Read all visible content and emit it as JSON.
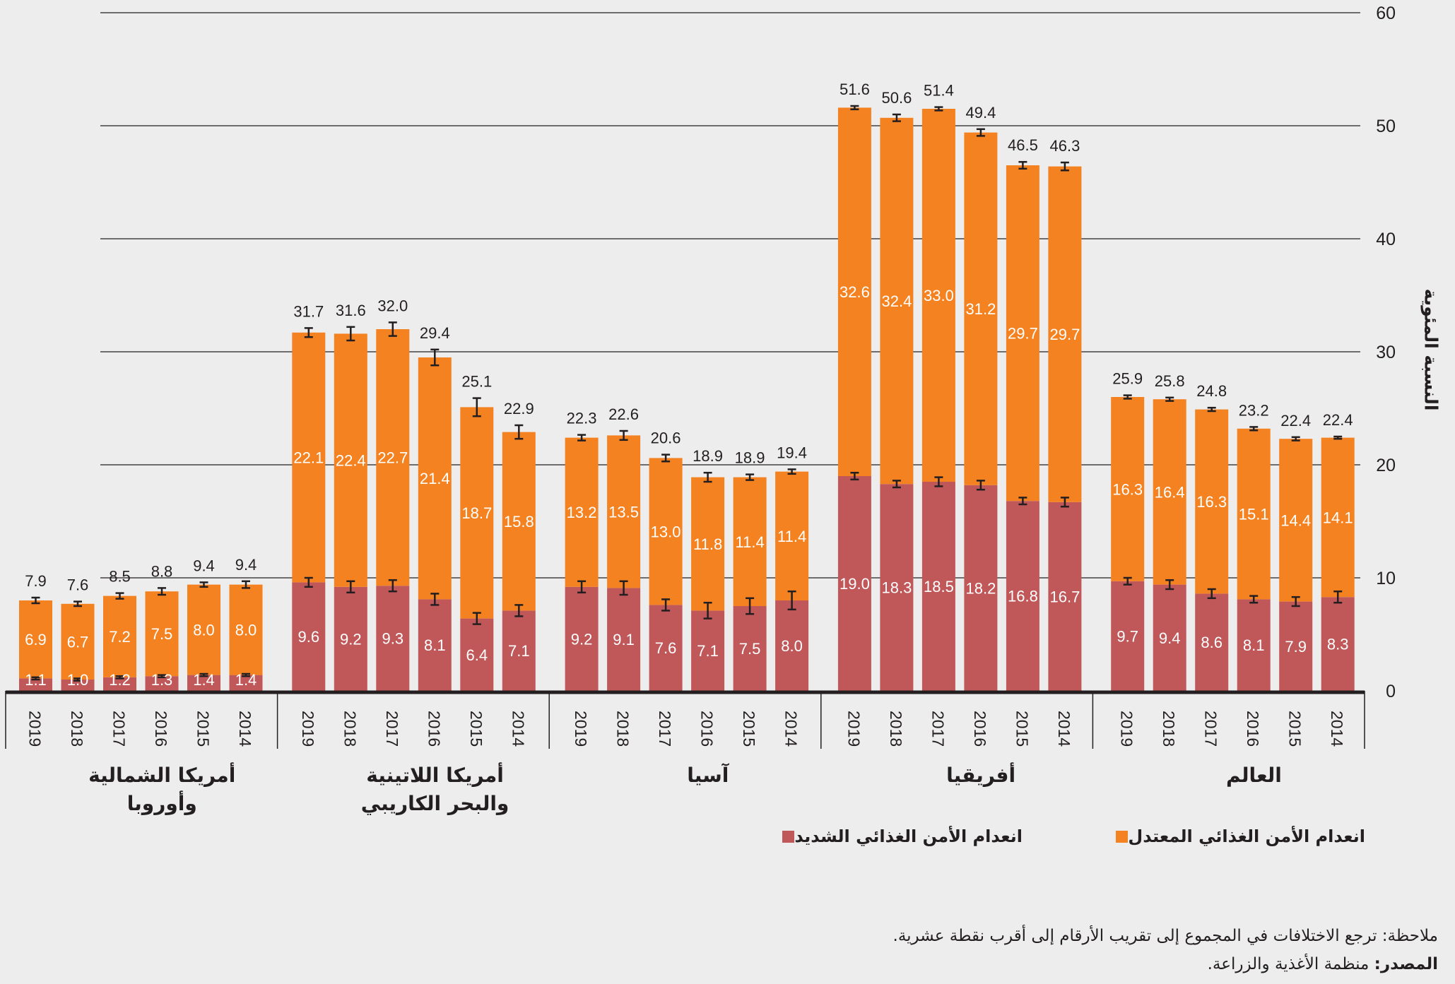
{
  "chart_data": {
    "type": "bar",
    "stacked": true,
    "title": "",
    "ylabel": "النسبة المئوية",
    "ylim": [
      0,
      60
    ],
    "yticks": [
      0,
      10,
      20,
      30,
      40,
      50,
      60
    ],
    "grid": true,
    "legend_position": "bottom-right",
    "colors": {
      "moderate": "#F58220",
      "severe": "#C0585A",
      "error_bar": "#231F20",
      "background": "#EDEDED"
    },
    "series": [
      {
        "key": "severe",
        "name": "انعدام الأمن الغذائي الشديد"
      },
      {
        "key": "moderate",
        "name": "انعدام الأمن الغذائي المعتدل"
      }
    ],
    "groups": [
      {
        "region": [
          "أمريكا الشمالية",
          "وأوروبا"
        ],
        "years": [
          "2019",
          "2018",
          "2017",
          "2016",
          "2015",
          "2014"
        ],
        "severe": [
          1.1,
          1.0,
          1.2,
          1.3,
          1.4,
          1.4
        ],
        "moderate": [
          6.9,
          6.7,
          7.2,
          7.5,
          8.0,
          8.0
        ],
        "total": [
          7.9,
          7.6,
          8.5,
          8.8,
          9.4,
          9.4
        ],
        "severe_err": [
          0.1,
          0.1,
          0.1,
          0.1,
          0.1,
          0.1
        ],
        "total_err": [
          0.25,
          0.2,
          0.25,
          0.3,
          0.2,
          0.3
        ]
      },
      {
        "region": [
          "أمريكا اللاتينية",
          "والبحر الكاريبي"
        ],
        "years": [
          "2019",
          "2018",
          "2017",
          "2016",
          "2015",
          "2014"
        ],
        "severe": [
          9.6,
          9.2,
          9.3,
          8.1,
          6.4,
          7.1
        ],
        "moderate": [
          22.1,
          22.4,
          22.7,
          21.4,
          18.7,
          15.8
        ],
        "total": [
          31.7,
          31.6,
          32.0,
          29.4,
          25.1,
          22.9
        ],
        "severe_err": [
          0.4,
          0.5,
          0.5,
          0.5,
          0.5,
          0.5
        ],
        "total_err": [
          0.4,
          0.6,
          0.6,
          0.7,
          0.8,
          0.6
        ]
      },
      {
        "region": [
          "آسيا"
        ],
        "years": [
          "2019",
          "2018",
          "2017",
          "2016",
          "2015",
          "2014"
        ],
        "severe": [
          9.2,
          9.1,
          7.6,
          7.1,
          7.5,
          8.0
        ],
        "moderate": [
          13.2,
          13.5,
          13.0,
          11.8,
          11.4,
          11.4
        ],
        "total": [
          22.3,
          22.6,
          20.6,
          18.9,
          18.9,
          19.4
        ],
        "severe_err": [
          0.5,
          0.6,
          0.5,
          0.7,
          0.7,
          0.8
        ],
        "total_err": [
          0.25,
          0.4,
          0.3,
          0.4,
          0.25,
          0.2
        ]
      },
      {
        "region": [
          "أفريقيا"
        ],
        "years": [
          "2019",
          "2018",
          "2017",
          "2016",
          "2015",
          "2014"
        ],
        "severe": [
          19.0,
          18.3,
          18.5,
          18.2,
          16.8,
          16.7
        ],
        "moderate": [
          32.6,
          32.4,
          33.0,
          31.2,
          29.7,
          29.7
        ],
        "total": [
          51.6,
          50.6,
          51.4,
          49.4,
          46.5,
          46.3
        ],
        "severe_err": [
          0.3,
          0.3,
          0.4,
          0.4,
          0.3,
          0.4
        ],
        "total_err": [
          0.15,
          0.3,
          0.15,
          0.3,
          0.3,
          0.35
        ]
      },
      {
        "region": [
          "العالم"
        ],
        "years": [
          "2019",
          "2018",
          "2017",
          "2016",
          "2015",
          "2014"
        ],
        "severe": [
          9.7,
          9.4,
          8.6,
          8.1,
          7.9,
          8.3
        ],
        "moderate": [
          16.3,
          16.4,
          16.3,
          15.1,
          14.4,
          14.1
        ],
        "total": [
          25.9,
          25.8,
          24.8,
          23.2,
          22.4,
          22.4
        ],
        "severe_err": [
          0.3,
          0.4,
          0.4,
          0.3,
          0.4,
          0.5
        ],
        "total_err": [
          0.15,
          0.15,
          0.15,
          0.15,
          0.15,
          0.1
        ]
      }
    ]
  },
  "legend": {
    "moderate_label": "انعدام الأمن الغذائي المعتدل",
    "severe_label": "انعدام الأمن الغذائي الشديد"
  },
  "notes": {
    "note_text": "ملاحظة: ترجع الاختلافات في المجموع إلى تقريب الأرقام إلى أقرب نقطة عشرية.",
    "source_label": "المصدر:",
    "source_text": " منظمة الأغذية والزراعة."
  }
}
